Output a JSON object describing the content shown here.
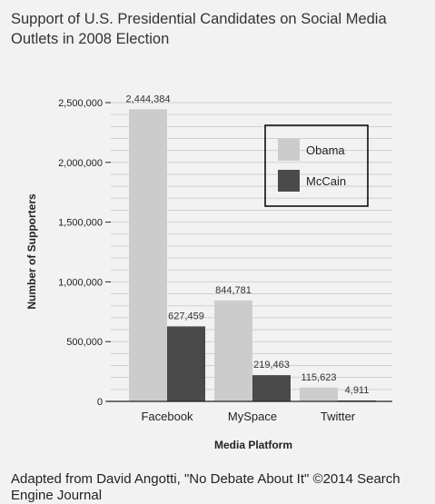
{
  "chart_data": {
    "type": "bar",
    "title": "Support of U.S. Presidential Candidates on Social Media Outlets in 2008 Election",
    "xlabel": "Media Platform",
    "ylabel": "Number of Supporters",
    "categories": [
      "Facebook",
      "MySpace",
      "Twitter"
    ],
    "series": [
      {
        "name": "Obama",
        "color": "#cccccc",
        "values": [
          2444384,
          844781,
          115623
        ],
        "labels": [
          "2,444,384",
          "844,781",
          "115,623"
        ]
      },
      {
        "name": "McCain",
        "color": "#4a4a4a",
        "values": [
          627459,
          219463,
          4911
        ],
        "labels": [
          "627,459",
          "219,463",
          "4,911"
        ]
      }
    ],
    "ylim": [
      0,
      2500000
    ],
    "yticks": [
      0,
      500000,
      1000000,
      1500000,
      2000000,
      2500000
    ],
    "ytick_labels": [
      "0",
      "500,000",
      "1,000,000",
      "1,500,000",
      "2,000,000",
      "2,500,000"
    ],
    "grid": true,
    "legend_position": "top-right"
  },
  "source": "Adapted from David Angotti, \"No Debate About It\" ©2014 Search Engine Journal"
}
